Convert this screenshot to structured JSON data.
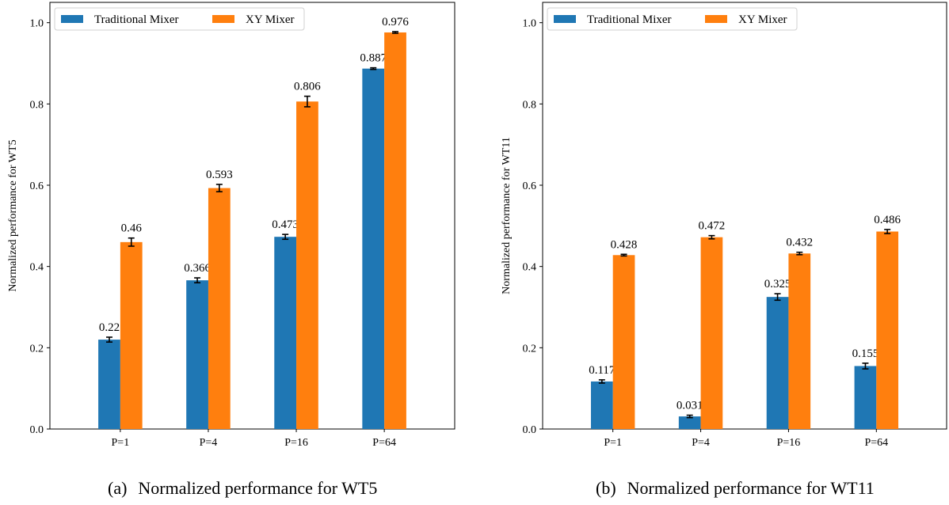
{
  "colors": {
    "traditional": "#1f77b4",
    "xy": "#ff7f0e",
    "errorbar": "#000000"
  },
  "chart_data": [
    {
      "type": "bar",
      "categories": [
        "P=1",
        "P=4",
        "P=16",
        "P=64"
      ],
      "ylabel": "Normalized performance for WT5",
      "ylim": [
        0,
        1.05
      ],
      "yticks": [
        "0.0",
        "0.2",
        "0.4",
        "0.6",
        "0.8",
        "1.0"
      ],
      "legend_position": "top-left",
      "grid": false,
      "series": [
        {
          "name": "Traditional Mixer",
          "values": [
            0.22,
            0.366,
            0.473,
            0.887
          ],
          "labels": [
            "0.22",
            "0.366",
            "0.473",
            "0.887"
          ],
          "errors": [
            0.006,
            0.006,
            0.006,
            0.002
          ]
        },
        {
          "name": "XY Mixer",
          "values": [
            0.46,
            0.593,
            0.806,
            0.976
          ],
          "labels": [
            "0.46",
            "0.593",
            "0.806",
            "0.976"
          ],
          "errors": [
            0.01,
            0.009,
            0.013,
            0.002
          ]
        }
      ]
    },
    {
      "type": "bar",
      "categories": [
        "P=1",
        "P=4",
        "P=16",
        "P=64"
      ],
      "ylabel": "Normalized performance for WT11",
      "ylim": [
        0,
        1.05
      ],
      "yticks": [
        "0.0",
        "0.2",
        "0.4",
        "0.6",
        "0.8",
        "1.0"
      ],
      "legend_position": "top-left",
      "grid": false,
      "series": [
        {
          "name": "Traditional Mixer",
          "values": [
            0.117,
            0.031,
            0.325,
            0.155
          ],
          "labels": [
            "0.117",
            "0.031",
            "0.325",
            "0.155"
          ],
          "errors": [
            0.004,
            0.003,
            0.008,
            0.007
          ]
        },
        {
          "name": "XY Mixer",
          "values": [
            0.428,
            0.472,
            0.432,
            0.486
          ],
          "labels": [
            "0.428",
            "0.472",
            "0.432",
            "0.486"
          ],
          "errors": [
            0.002,
            0.004,
            0.003,
            0.005
          ]
        }
      ]
    }
  ],
  "captions": [
    {
      "tag": "(a)",
      "text": "Normalized performance for WT5"
    },
    {
      "tag": "(b)",
      "text": "Normalized performance for WT11"
    }
  ]
}
